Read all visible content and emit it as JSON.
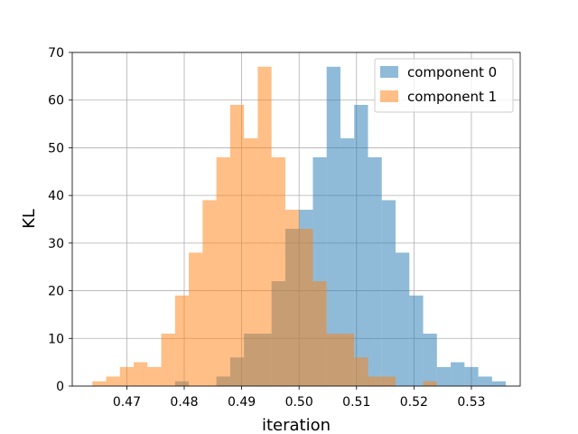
{
  "chart_data": {
    "type": "histogram",
    "title": "",
    "xlabel": "iteration",
    "ylabel": "KL",
    "xlim": [
      0.4605,
      0.5385
    ],
    "ylim": [
      0,
      70
    ],
    "xticks": [
      "0.47",
      "0.48",
      "0.49",
      "0.50",
      "0.51",
      "0.52",
      "0.53"
    ],
    "yticks": [
      "0",
      "10",
      "20",
      "30",
      "40",
      "50",
      "60",
      "70"
    ],
    "grid": true,
    "legend_position": "top-right",
    "series": [
      {
        "name": "component 0",
        "color": "#1f77b4",
        "opacity": 0.5,
        "bins": [
          {
            "x0": 0.464,
            "x1": 0.4664,
            "count": 0
          },
          {
            "x0": 0.4664,
            "x1": 0.4688,
            "count": 0
          },
          {
            "x0": 0.4688,
            "x1": 0.4712,
            "count": 0
          },
          {
            "x0": 0.4712,
            "x1": 0.4736,
            "count": 0
          },
          {
            "x0": 0.4736,
            "x1": 0.476,
            "count": 0
          },
          {
            "x0": 0.476,
            "x1": 0.4784,
            "count": 0
          },
          {
            "x0": 0.4784,
            "x1": 0.4808,
            "count": 1
          },
          {
            "x0": 0.4808,
            "x1": 0.4832,
            "count": 0
          },
          {
            "x0": 0.4832,
            "x1": 0.4856,
            "count": 0
          },
          {
            "x0": 0.4856,
            "x1": 0.488,
            "count": 2
          },
          {
            "x0": 0.488,
            "x1": 0.4904,
            "count": 6
          },
          {
            "x0": 0.4904,
            "x1": 0.4928,
            "count": 11
          },
          {
            "x0": 0.4928,
            "x1": 0.4952,
            "count": 11
          },
          {
            "x0": 0.4952,
            "x1": 0.4976,
            "count": 22
          },
          {
            "x0": 0.4976,
            "x1": 0.5,
            "count": 33
          },
          {
            "x0": 0.5,
            "x1": 0.5024,
            "count": 37
          },
          {
            "x0": 0.5024,
            "x1": 0.5048,
            "count": 48
          },
          {
            "x0": 0.5048,
            "x1": 0.5072,
            "count": 67
          },
          {
            "x0": 0.5072,
            "x1": 0.5096,
            "count": 52
          },
          {
            "x0": 0.5096,
            "x1": 0.512,
            "count": 59
          },
          {
            "x0": 0.512,
            "x1": 0.5144,
            "count": 48
          },
          {
            "x0": 0.5144,
            "x1": 0.5168,
            "count": 39
          },
          {
            "x0": 0.5168,
            "x1": 0.5192,
            "count": 28
          },
          {
            "x0": 0.5192,
            "x1": 0.5216,
            "count": 19
          },
          {
            "x0": 0.5216,
            "x1": 0.524,
            "count": 11
          },
          {
            "x0": 0.524,
            "x1": 0.5264,
            "count": 4
          },
          {
            "x0": 0.5264,
            "x1": 0.5288,
            "count": 5
          },
          {
            "x0": 0.5288,
            "x1": 0.5312,
            "count": 4
          },
          {
            "x0": 0.5312,
            "x1": 0.5336,
            "count": 2
          },
          {
            "x0": 0.5336,
            "x1": 0.536,
            "count": 1
          }
        ]
      },
      {
        "name": "component 1",
        "color": "#ff7f0e",
        "opacity": 0.5,
        "bins": [
          {
            "x0": 0.464,
            "x1": 0.4664,
            "count": 1
          },
          {
            "x0": 0.4664,
            "x1": 0.4688,
            "count": 2
          },
          {
            "x0": 0.4688,
            "x1": 0.4712,
            "count": 4
          },
          {
            "x0": 0.4712,
            "x1": 0.4736,
            "count": 5
          },
          {
            "x0": 0.4736,
            "x1": 0.476,
            "count": 4
          },
          {
            "x0": 0.476,
            "x1": 0.4784,
            "count": 11
          },
          {
            "x0": 0.4784,
            "x1": 0.4808,
            "count": 19
          },
          {
            "x0": 0.4808,
            "x1": 0.4832,
            "count": 28
          },
          {
            "x0": 0.4832,
            "x1": 0.4856,
            "count": 39
          },
          {
            "x0": 0.4856,
            "x1": 0.488,
            "count": 48
          },
          {
            "x0": 0.488,
            "x1": 0.4904,
            "count": 59
          },
          {
            "x0": 0.4904,
            "x1": 0.4928,
            "count": 52
          },
          {
            "x0": 0.4928,
            "x1": 0.4952,
            "count": 67
          },
          {
            "x0": 0.4952,
            "x1": 0.4976,
            "count": 48
          },
          {
            "x0": 0.4976,
            "x1": 0.5,
            "count": 37
          },
          {
            "x0": 0.5,
            "x1": 0.5024,
            "count": 33
          },
          {
            "x0": 0.5024,
            "x1": 0.5048,
            "count": 22
          },
          {
            "x0": 0.5048,
            "x1": 0.5072,
            "count": 11
          },
          {
            "x0": 0.5072,
            "x1": 0.5096,
            "count": 11
          },
          {
            "x0": 0.5096,
            "x1": 0.512,
            "count": 6
          },
          {
            "x0": 0.512,
            "x1": 0.5144,
            "count": 2
          },
          {
            "x0": 0.5144,
            "x1": 0.5168,
            "count": 2
          },
          {
            "x0": 0.5168,
            "x1": 0.5192,
            "count": 0
          },
          {
            "x0": 0.5192,
            "x1": 0.5216,
            "count": 0
          },
          {
            "x0": 0.5216,
            "x1": 0.524,
            "count": 1
          },
          {
            "x0": 0.524,
            "x1": 0.5264,
            "count": 0
          },
          {
            "x0": 0.5264,
            "x1": 0.5288,
            "count": 0
          },
          {
            "x0": 0.5288,
            "x1": 0.5312,
            "count": 0
          },
          {
            "x0": 0.5312,
            "x1": 0.5336,
            "count": 0
          },
          {
            "x0": 0.5336,
            "x1": 0.536,
            "count": 0
          }
        ]
      }
    ]
  }
}
